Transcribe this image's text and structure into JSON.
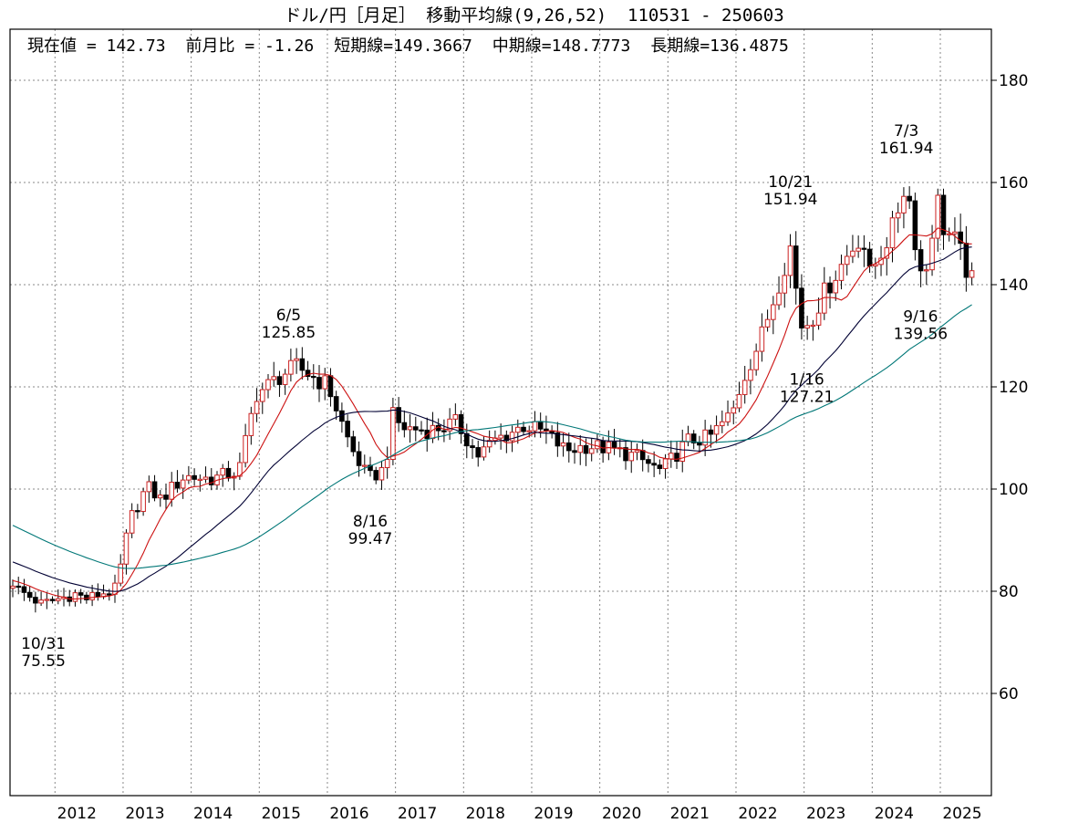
{
  "title": "ドル/円［月足］ 移動平均線(9,26,52)  110531 - 250603",
  "stats": {
    "current_label": "現在値 = 142.73",
    "change_label": "前月比 = -1.26",
    "short_label": "短期線=149.3667",
    "mid_label": "中期線=148.7773",
    "long_label": "長期線=136.4875"
  },
  "colors": {
    "up": "#cc2222",
    "down": "#000000",
    "ma_short": "#cc1111",
    "ma_mid": "#000033",
    "ma_long": "#007777",
    "grid": "#888888"
  },
  "chart_data": {
    "type": "candlestick",
    "title": "ドル/円［月足］ 移動平均線(9,26,52)",
    "x_range": [
      2011.34,
      2025.75
    ],
    "ylim": [
      40,
      190
    ],
    "y_ticks": [
      60,
      80,
      100,
      120,
      140,
      160,
      180
    ],
    "x_ticks": [
      2012,
      2013,
      2014,
      2015,
      2016,
      2017,
      2018,
      2019,
      2020,
      2021,
      2022,
      2023,
      2024,
      2025
    ],
    "grid": true,
    "close_anchors": [
      [
        2011.38,
        81.0
      ],
      [
        2011.8,
        77.5
      ],
      [
        2012.3,
        79.5
      ],
      [
        2012.45,
        78.5
      ],
      [
        2012.9,
        80.5
      ],
      [
        2013.1,
        94.0
      ],
      [
        2013.35,
        100.5
      ],
      [
        2013.55,
        98.0
      ],
      [
        2013.9,
        102.5
      ],
      [
        2014.3,
        102.0
      ],
      [
        2014.7,
        103.5
      ],
      [
        2014.95,
        118.5
      ],
      [
        2015.35,
        122.5
      ],
      [
        2015.55,
        124.0
      ],
      [
        2015.9,
        121.0
      ],
      [
        2016.0,
        120.5
      ],
      [
        2016.35,
        108.0
      ],
      [
        2016.6,
        102.0
      ],
      [
        2016.85,
        104.0
      ],
      [
        2016.95,
        114.5
      ],
      [
        2017.1,
        112.0
      ],
      [
        2017.5,
        111.5
      ],
      [
        2017.9,
        113.0
      ],
      [
        2018.2,
        106.5
      ],
      [
        2018.45,
        109.5
      ],
      [
        2018.9,
        112.5
      ],
      [
        2019.2,
        111.0
      ],
      [
        2019.5,
        107.5
      ],
      [
        2019.8,
        108.5
      ],
      [
        2020.1,
        108.0
      ],
      [
        2020.5,
        106.5
      ],
      [
        2020.9,
        103.5
      ],
      [
        2021.3,
        109.5
      ],
      [
        2021.6,
        110.0
      ],
      [
        2021.95,
        115.0
      ],
      [
        2022.1,
        121.5
      ],
      [
        2022.35,
        129.0
      ],
      [
        2022.5,
        135.0
      ],
      [
        2022.8,
        147.5
      ],
      [
        2022.95,
        132.0
      ],
      [
        2023.1,
        133.0
      ],
      [
        2023.3,
        138.5
      ],
      [
        2023.6,
        145.0
      ],
      [
        2023.85,
        150.0
      ],
      [
        2023.95,
        141.5
      ],
      [
        2024.3,
        151.0
      ],
      [
        2024.5,
        160.5
      ],
      [
        2024.7,
        142.5
      ],
      [
        2024.8,
        143.5
      ],
      [
        2024.95,
        157.0
      ],
      [
        2025.05,
        151.0
      ],
      [
        2025.25,
        148.0
      ],
      [
        2025.38,
        143.0
      ],
      [
        2025.45,
        142.73
      ]
    ],
    "series": [
      {
        "name": "短期線 (9)",
        "period": 9,
        "last": 149.3667
      },
      {
        "name": "中期線 (26)",
        "period": 26,
        "last": 148.7773
      },
      {
        "name": "長期線 (52)",
        "period": 52,
        "last": 136.4875
      }
    ],
    "annotations": [
      {
        "date": "10/31",
        "value": "75.55",
        "x": 2011.83,
        "y": 75.55,
        "pos": "below"
      },
      {
        "date": "6/5",
        "value": "125.85",
        "x": 2015.43,
        "y": 125.85,
        "pos": "above"
      },
      {
        "date": "8/16",
        "value": "99.47",
        "x": 2016.63,
        "y": 99.47,
        "pos": "below"
      },
      {
        "date": "1/16",
        "value": "127.21",
        "x": 2023.04,
        "y": 127.21,
        "pos": "below"
      },
      {
        "date": "10/21",
        "value": "151.94",
        "x": 2022.8,
        "y": 151.94,
        "pos": "above"
      },
      {
        "date": "7/3",
        "value": "161.94",
        "x": 2024.5,
        "y": 161.94,
        "pos": "above"
      },
      {
        "date": "9/16",
        "value": "139.56",
        "x": 2024.71,
        "y": 139.56,
        "pos": "below"
      }
    ]
  }
}
